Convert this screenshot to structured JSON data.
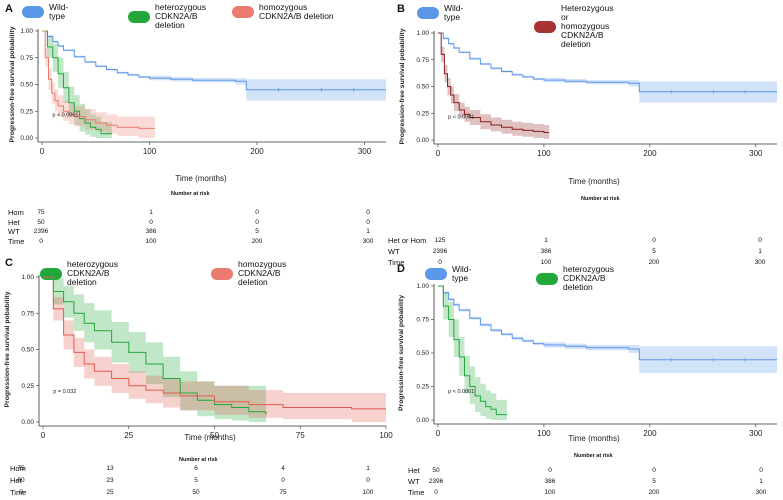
{
  "chart_data": [
    {
      "type": "line",
      "panel_label": "A",
      "legend": [
        "Wild-type",
        "heterozygous CDKN2A/B deletion",
        "homozygous CDKN2A/B deletion"
      ],
      "legend_colors": [
        "#5b97e8",
        "#22a83a",
        "#ec7a6e"
      ],
      "ylabel": "Progression-free survival pobability",
      "xlabel": "Time (months)",
      "xlim": [
        0,
        320
      ],
      "ylim": [
        0,
        1
      ],
      "xticks": [
        "0",
        "100",
        "200",
        "300"
      ],
      "yticks": [
        "0.00",
        "0.25",
        "0.50",
        "0.75",
        "1.00"
      ],
      "pvalue": "p < 0.0001",
      "series": [
        {
          "name": "Wild-type",
          "color": "#5b97e8",
          "x": [
            0,
            5,
            10,
            15,
            20,
            30,
            40,
            50,
            60,
            70,
            80,
            90,
            100,
            120,
            140,
            160,
            180,
            190,
            200,
            250,
            320
          ],
          "y": [
            1.0,
            0.95,
            0.9,
            0.86,
            0.82,
            0.76,
            0.71,
            0.67,
            0.64,
            0.61,
            0.59,
            0.57,
            0.56,
            0.55,
            0.54,
            0.54,
            0.53,
            0.45,
            0.45,
            0.45,
            0.45
          ],
          "lo": [
            1.0,
            0.94,
            0.89,
            0.85,
            0.81,
            0.75,
            0.7,
            0.66,
            0.63,
            0.6,
            0.58,
            0.56,
            0.54,
            0.53,
            0.52,
            0.52,
            0.5,
            0.35,
            0.35,
            0.35,
            0.35
          ],
          "hi": [
            1.0,
            0.96,
            0.91,
            0.87,
            0.83,
            0.77,
            0.72,
            0.68,
            0.65,
            0.62,
            0.6,
            0.58,
            0.58,
            0.57,
            0.56,
            0.56,
            0.56,
            0.55,
            0.55,
            0.55,
            0.55
          ]
        },
        {
          "name": "heterozygous CDKN2A/B deletion",
          "color": "#22a83a",
          "x": [
            0,
            5,
            10,
            15,
            20,
            25,
            30,
            35,
            40,
            45,
            50,
            55,
            60,
            65
          ],
          "y": [
            1.0,
            0.85,
            0.75,
            0.6,
            0.47,
            0.33,
            0.25,
            0.18,
            0.14,
            0.1,
            0.08,
            0.04,
            0.04,
            0.04
          ],
          "lo": [
            1.0,
            0.75,
            0.62,
            0.47,
            0.33,
            0.2,
            0.12,
            0.06,
            0.03,
            0.01,
            0.0,
            0.0,
            0.0,
            0.0
          ],
          "hi": [
            1.0,
            0.95,
            0.88,
            0.75,
            0.62,
            0.48,
            0.4,
            0.32,
            0.27,
            0.22,
            0.2,
            0.15,
            0.15,
            0.15
          ]
        },
        {
          "name": "homozygous CDKN2A/B deletion",
          "color": "#ec7a6e",
          "x": [
            0,
            3,
            6,
            9,
            12,
            15,
            20,
            25,
            30,
            40,
            50,
            60,
            70,
            80,
            90,
            100,
            105
          ],
          "y": [
            1.0,
            0.75,
            0.55,
            0.42,
            0.35,
            0.3,
            0.25,
            0.22,
            0.2,
            0.17,
            0.14,
            0.12,
            0.1,
            0.1,
            0.09,
            0.09,
            0.09
          ],
          "lo": [
            1.0,
            0.66,
            0.45,
            0.32,
            0.25,
            0.2,
            0.16,
            0.13,
            0.11,
            0.08,
            0.06,
            0.04,
            0.02,
            0.02,
            0.0,
            0.0,
            0.0
          ],
          "hi": [
            1.0,
            0.84,
            0.65,
            0.52,
            0.45,
            0.4,
            0.35,
            0.32,
            0.3,
            0.27,
            0.24,
            0.22,
            0.2,
            0.2,
            0.2,
            0.2,
            0.2
          ]
        }
      ],
      "risk_table": {
        "title": "Number at risk",
        "rows": [
          {
            "label": "Hom",
            "values": [
              "75",
              "1",
              "0",
              "0"
            ]
          },
          {
            "label": "Het",
            "values": [
              "50",
              "0",
              "0",
              "0"
            ]
          },
          {
            "label": "WT",
            "values": [
              "2396",
              "386",
              "5",
              "1"
            ]
          },
          {
            "label": "Time",
            "values": [
              "0",
              "100",
              "200",
              "300"
            ]
          }
        ]
      }
    },
    {
      "type": "line",
      "panel_label": "B",
      "legend": [
        "Wild-type",
        "Heterozygous or homozygous CDKN2A/B deletion"
      ],
      "legend_colors": [
        "#5b97e8",
        "#a83232"
      ],
      "ylabel": "Progression-free survival pobability",
      "xlabel": "Time (months)",
      "xlim": [
        0,
        320
      ],
      "ylim": [
        0,
        1
      ],
      "xticks": [
        "0",
        "100",
        "200",
        "300"
      ],
      "yticks": [
        "0.00",
        "0.25",
        "0.50",
        "0.75",
        "1.00"
      ],
      "pvalue": "p < 0.0001",
      "series": [
        {
          "name": "Wild-type",
          "color": "#5b97e8",
          "x": [
            0,
            5,
            10,
            15,
            20,
            30,
            40,
            50,
            60,
            70,
            80,
            90,
            100,
            120,
            140,
            160,
            180,
            190,
            200,
            250,
            320
          ],
          "y": [
            1.0,
            0.95,
            0.9,
            0.86,
            0.82,
            0.76,
            0.71,
            0.67,
            0.64,
            0.61,
            0.59,
            0.57,
            0.56,
            0.55,
            0.54,
            0.54,
            0.53,
            0.45,
            0.45,
            0.45,
            0.45
          ],
          "lo": [
            1.0,
            0.94,
            0.89,
            0.85,
            0.81,
            0.75,
            0.7,
            0.66,
            0.63,
            0.6,
            0.58,
            0.56,
            0.54,
            0.53,
            0.52,
            0.52,
            0.5,
            0.35,
            0.35,
            0.35,
            0.35
          ],
          "hi": [
            1.0,
            0.96,
            0.91,
            0.87,
            0.83,
            0.77,
            0.72,
            0.68,
            0.65,
            0.62,
            0.6,
            0.58,
            0.58,
            0.57,
            0.56,
            0.56,
            0.56,
            0.55,
            0.55,
            0.55,
            0.55
          ]
        },
        {
          "name": "Heterozygous or homozygous CDKN2A/B deletion",
          "color": "#8b1f1f",
          "x": [
            0,
            3,
            6,
            9,
            12,
            15,
            20,
            25,
            30,
            40,
            50,
            60,
            70,
            80,
            90,
            100,
            105
          ],
          "y": [
            1.0,
            0.8,
            0.62,
            0.5,
            0.42,
            0.35,
            0.28,
            0.24,
            0.21,
            0.17,
            0.14,
            0.12,
            0.1,
            0.09,
            0.08,
            0.07,
            0.07
          ],
          "lo": [
            1.0,
            0.73,
            0.54,
            0.42,
            0.34,
            0.27,
            0.21,
            0.17,
            0.14,
            0.1,
            0.08,
            0.06,
            0.04,
            0.03,
            0.02,
            0.01,
            0.0
          ],
          "hi": [
            1.0,
            0.87,
            0.7,
            0.58,
            0.5,
            0.43,
            0.35,
            0.31,
            0.28,
            0.24,
            0.21,
            0.19,
            0.17,
            0.16,
            0.15,
            0.14,
            0.14
          ]
        }
      ],
      "risk_table": {
        "title": "Number at risk",
        "rows": [
          {
            "label": "Het or Hom",
            "values": [
              "125",
              "1",
              "0",
              "0"
            ]
          },
          {
            "label": "WT",
            "values": [
              "2396",
              "386",
              "5",
              "1"
            ]
          },
          {
            "label": "Time",
            "values": [
              "0",
              "100",
              "200",
              "300"
            ]
          }
        ]
      }
    },
    {
      "type": "line",
      "panel_label": "C",
      "legend": [
        "heterozygous CDKN2A/B deletion",
        "homozygous CDKN2A/B deletion"
      ],
      "legend_colors": [
        "#22a83a",
        "#ec7a6e"
      ],
      "ylabel": "Progression-free survival pobability",
      "xlabel": "Time (months)",
      "xlim": [
        0,
        100
      ],
      "ylim": [
        0,
        1
      ],
      "xticks": [
        "0",
        "25",
        "50",
        "75",
        "100"
      ],
      "yticks": [
        "0.00",
        "0.25",
        "0.50",
        "0.75",
        "1.00"
      ],
      "pvalue": "p = 0.032",
      "series": [
        {
          "name": "heterozygous CDKN2A/B deletion",
          "color": "#22a83a",
          "x": [
            0,
            3,
            6,
            9,
            12,
            15,
            20,
            25,
            30,
            35,
            40,
            45,
            50,
            55,
            60,
            65
          ],
          "y": [
            1.0,
            0.9,
            0.83,
            0.75,
            0.68,
            0.63,
            0.55,
            0.48,
            0.4,
            0.3,
            0.2,
            0.15,
            0.12,
            0.1,
            0.07,
            0.05
          ],
          "lo": [
            1.0,
            0.81,
            0.72,
            0.63,
            0.55,
            0.5,
            0.41,
            0.34,
            0.26,
            0.17,
            0.08,
            0.04,
            0.02,
            0.01,
            0.0,
            0.0
          ],
          "hi": [
            1.0,
            0.99,
            0.94,
            0.88,
            0.82,
            0.77,
            0.69,
            0.62,
            0.55,
            0.45,
            0.35,
            0.28,
            0.25,
            0.25,
            0.25,
            0.25
          ]
        },
        {
          "name": "homozygous CDKN2A/B deletion",
          "color": "#e45a4f",
          "x": [
            0,
            3,
            6,
            9,
            12,
            15,
            20,
            25,
            30,
            35,
            40,
            50,
            60,
            70,
            80,
            90,
            100
          ],
          "y": [
            1.0,
            0.78,
            0.6,
            0.48,
            0.4,
            0.35,
            0.3,
            0.25,
            0.22,
            0.2,
            0.18,
            0.14,
            0.12,
            0.1,
            0.1,
            0.09,
            0.09
          ],
          "lo": [
            1.0,
            0.7,
            0.5,
            0.38,
            0.3,
            0.25,
            0.2,
            0.16,
            0.13,
            0.1,
            0.08,
            0.05,
            0.03,
            0.02,
            0.02,
            0.0,
            0.0
          ],
          "hi": [
            1.0,
            0.86,
            0.7,
            0.58,
            0.5,
            0.45,
            0.4,
            0.35,
            0.32,
            0.3,
            0.28,
            0.25,
            0.22,
            0.2,
            0.2,
            0.2,
            0.2
          ]
        }
      ],
      "risk_table": {
        "title": "Number at risk",
        "rows": [
          {
            "label": "Hom",
            "values": [
              "75",
              "13",
              "6",
              "4",
              "1"
            ]
          },
          {
            "label": "Het",
            "values": [
              "50",
              "23",
              "5",
              "0",
              "0"
            ]
          },
          {
            "label": "Time",
            "values": [
              "0",
              "25",
              "50",
              "75",
              "100"
            ]
          }
        ]
      }
    },
    {
      "type": "line",
      "panel_label": "D",
      "legend": [
        "Wild-type",
        "heterozygous CDKN2A/B deletion"
      ],
      "legend_colors": [
        "#5b97e8",
        "#22a83a"
      ],
      "ylabel": "Progression-free survival pobability",
      "xlabel": "Time (months)",
      "xlim": [
        0,
        320
      ],
      "ylim": [
        0,
        1
      ],
      "xticks": [
        "0",
        "100",
        "200",
        "300"
      ],
      "yticks": [
        "0.00",
        "0.25",
        "0.50",
        "0.75",
        "1.00"
      ],
      "pvalue": "p < 0.0001",
      "series": [
        {
          "name": "Wild-type",
          "color": "#5b97e8",
          "x": [
            0,
            5,
            10,
            15,
            20,
            30,
            40,
            50,
            60,
            70,
            80,
            90,
            100,
            120,
            140,
            160,
            180,
            190,
            200,
            250,
            320
          ],
          "y": [
            1.0,
            0.95,
            0.9,
            0.86,
            0.82,
            0.76,
            0.71,
            0.67,
            0.64,
            0.61,
            0.59,
            0.57,
            0.56,
            0.55,
            0.54,
            0.54,
            0.53,
            0.45,
            0.45,
            0.45,
            0.45
          ],
          "lo": [
            1.0,
            0.94,
            0.89,
            0.85,
            0.81,
            0.75,
            0.7,
            0.66,
            0.63,
            0.6,
            0.58,
            0.56,
            0.54,
            0.53,
            0.52,
            0.52,
            0.5,
            0.35,
            0.35,
            0.35,
            0.35
          ],
          "hi": [
            1.0,
            0.96,
            0.91,
            0.87,
            0.83,
            0.77,
            0.72,
            0.68,
            0.65,
            0.62,
            0.6,
            0.58,
            0.58,
            0.57,
            0.56,
            0.56,
            0.56,
            0.55,
            0.55,
            0.55,
            0.55
          ]
        },
        {
          "name": "heterozygous CDKN2A/B deletion",
          "color": "#22a83a",
          "x": [
            0,
            5,
            10,
            15,
            20,
            25,
            30,
            35,
            40,
            45,
            50,
            55,
            60,
            65
          ],
          "y": [
            1.0,
            0.85,
            0.75,
            0.6,
            0.47,
            0.33,
            0.25,
            0.18,
            0.14,
            0.1,
            0.08,
            0.04,
            0.04,
            0.04
          ],
          "lo": [
            1.0,
            0.75,
            0.62,
            0.47,
            0.33,
            0.2,
            0.12,
            0.06,
            0.03,
            0.01,
            0.0,
            0.0,
            0.0,
            0.0
          ],
          "hi": [
            1.0,
            0.95,
            0.88,
            0.75,
            0.62,
            0.48,
            0.4,
            0.32,
            0.27,
            0.22,
            0.2,
            0.15,
            0.15,
            0.15
          ]
        }
      ],
      "risk_table": {
        "title": "Number at risk",
        "rows": [
          {
            "label": "Het",
            "values": [
              "50",
              "0",
              "0",
              "0"
            ]
          },
          {
            "label": "WT",
            "values": [
              "2396",
              "386",
              "5",
              "1"
            ]
          },
          {
            "label": "Time",
            "values": [
              "0",
              "100",
              "200",
              "300"
            ]
          }
        ]
      }
    }
  ]
}
